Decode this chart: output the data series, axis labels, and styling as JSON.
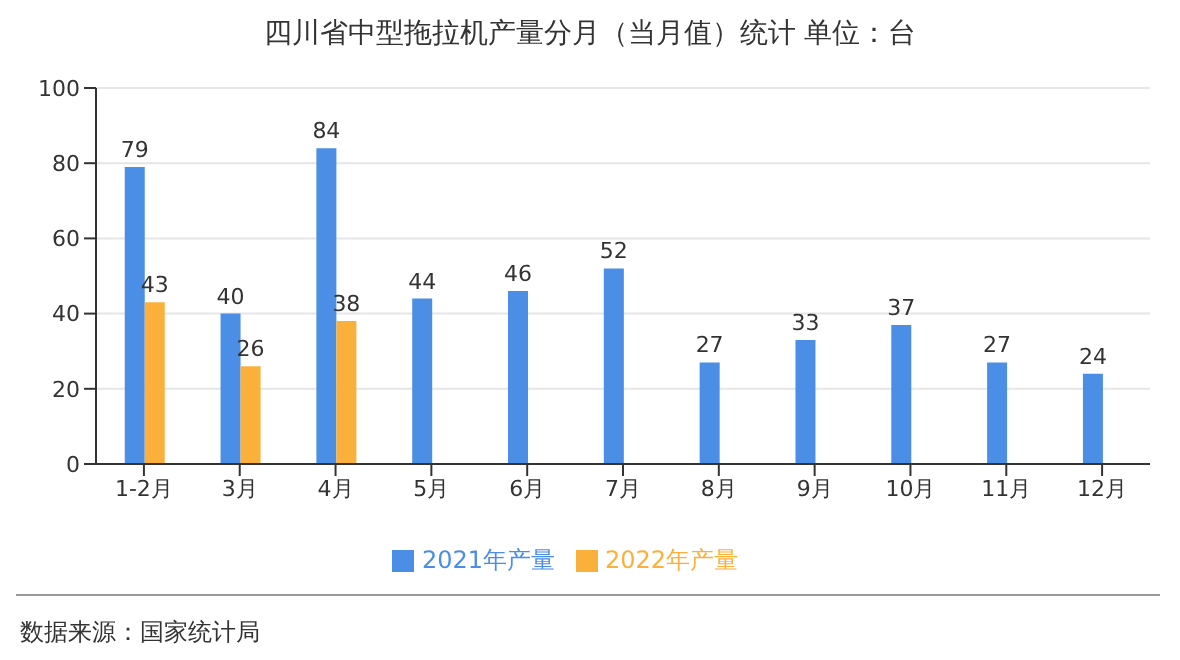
{
  "chart_data": {
    "type": "bar",
    "title": "四川省中型拖拉机产量分月（当月值）统计 单位：台",
    "categories": [
      "1-2月",
      "3月",
      "4月",
      "5月",
      "6月",
      "7月",
      "8月",
      "9月",
      "10月",
      "11月",
      "12月"
    ],
    "series": [
      {
        "name": "2021年产量",
        "color": "#4a8ee6",
        "values": [
          79,
          40,
          84,
          44,
          46,
          52,
          27,
          33,
          37,
          27,
          24
        ]
      },
      {
        "name": "2022年产量",
        "color": "#fbb03b",
        "values": [
          43,
          26,
          38,
          null,
          null,
          null,
          null,
          null,
          null,
          null,
          null
        ]
      }
    ],
    "ylim": [
      0,
      100
    ],
    "yticks": [
      0,
      20,
      40,
      60,
      80,
      100
    ],
    "grid": "y",
    "legend": "bottom",
    "data_labels": true,
    "annotations": [
      "数据来源：国家统计局"
    ]
  }
}
